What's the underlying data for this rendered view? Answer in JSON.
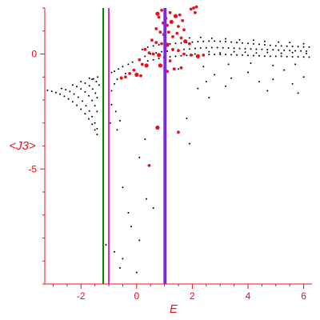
{
  "chart_data": {
    "type": "scatter",
    "title": "",
    "xlabel": "E",
    "ylabel": "<J3>",
    "xlim": [
      -3.3,
      6.3
    ],
    "ylim": [
      -10,
      2
    ],
    "xticks": [
      -2,
      0,
      2,
      4,
      6
    ],
    "yticks": [
      0,
      -5
    ],
    "grid": false,
    "colors": {
      "axis": "#e8111a",
      "black_points": "#000000",
      "red_points": "#e8111a",
      "line_green": "#008000",
      "line_magenta": "#cc33cc",
      "line_purple": "#7a2be2"
    },
    "vertical_lines": [
      {
        "x": -1.2,
        "color": "#008000"
      },
      {
        "x": -1.0,
        "color": "#cc33cc"
      },
      {
        "x": 1.02,
        "color": "#7a2be2"
      }
    ],
    "series": [
      {
        "color": "#000000",
        "points": [
          [
            -3.2,
            -1.58
          ],
          [
            -3.05,
            -1.62
          ],
          [
            -2.9,
            -1.68
          ],
          [
            -2.75,
            -1.75
          ],
          [
            -2.6,
            -1.84
          ],
          [
            -2.45,
            -1.95
          ],
          [
            -2.3,
            -2.08
          ],
          [
            -2.15,
            -2.23
          ],
          [
            -2.0,
            -2.4
          ],
          [
            -1.85,
            -2.6
          ],
          [
            -1.72,
            -2.82
          ],
          [
            -1.6,
            -3.05
          ],
          [
            -1.5,
            -3.3
          ],
          [
            -1.42,
            -3.5
          ],
          [
            -2.7,
            -1.5
          ],
          [
            -2.55,
            -1.55
          ],
          [
            -2.4,
            -1.63
          ],
          [
            -2.25,
            -1.74
          ],
          [
            -2.1,
            -1.88
          ],
          [
            -1.95,
            -2.05
          ],
          [
            -1.82,
            -2.25
          ],
          [
            -1.7,
            -2.48
          ],
          [
            -1.6,
            -2.72
          ],
          [
            -1.5,
            -3.0
          ],
          [
            -1.42,
            -3.25
          ],
          [
            -2.3,
            -1.35
          ],
          [
            -2.15,
            -1.42
          ],
          [
            -2.0,
            -1.52
          ],
          [
            -1.85,
            -1.65
          ],
          [
            -1.72,
            -1.82
          ],
          [
            -1.6,
            -2.02
          ],
          [
            -1.5,
            -2.25
          ],
          [
            -1.42,
            -2.5
          ],
          [
            -2.0,
            -1.2
          ],
          [
            -1.85,
            -1.27
          ],
          [
            -1.7,
            -1.38
          ],
          [
            -1.58,
            -1.52
          ],
          [
            -1.48,
            -1.7
          ],
          [
            -1.42,
            -1.9
          ],
          [
            -1.6,
            -1.1
          ],
          [
            -1.45,
            -1.2
          ],
          [
            -1.35,
            -1.35
          ],
          [
            -1.7,
            -1.05
          ],
          [
            -1.55,
            -1.08
          ],
          [
            -1.4,
            -1.0
          ],
          [
            -1.2,
            -0.95
          ],
          [
            -1.0,
            -0.9
          ],
          [
            -0.9,
            -0.8
          ],
          [
            -0.8,
            -0.75
          ],
          [
            -0.65,
            -0.65
          ],
          [
            -0.5,
            -0.55
          ],
          [
            -0.3,
            -0.45
          ],
          [
            -0.15,
            -0.35
          ],
          [
            -0.9,
            -1.6
          ],
          [
            -0.8,
            -1.3
          ],
          [
            -0.7,
            -1.1
          ],
          [
            -0.55,
            -1.0
          ],
          [
            -0.4,
            -0.85
          ],
          [
            -0.9,
            -2.2
          ],
          [
            -0.75,
            -2.5
          ],
          [
            -0.6,
            -2.9
          ],
          [
            -0.95,
            -3.0
          ],
          [
            -0.7,
            -3.3
          ],
          [
            -0.5,
            -5.8
          ],
          [
            -0.3,
            -6.9
          ],
          [
            -0.2,
            -7.5
          ],
          [
            0.1,
            -4.5
          ],
          [
            0.3,
            -3.7
          ],
          [
            0.35,
            -6.3
          ],
          [
            0.1,
            -8.1
          ],
          [
            0.6,
            -6.7
          ],
          [
            0.0,
            -9.5
          ],
          [
            -1.1,
            -8.3
          ],
          [
            -0.8,
            -8.6
          ],
          [
            -0.5,
            -8.9
          ],
          [
            -0.6,
            -9.3
          ],
          [
            1.8,
            -2.8
          ],
          [
            1.9,
            -3.9
          ],
          [
            2.2,
            -1.5
          ],
          [
            2.5,
            -1.2
          ],
          [
            2.6,
            -1.9
          ],
          [
            2.8,
            -0.9
          ],
          [
            3.2,
            -1.4
          ],
          [
            3.4,
            -1.05
          ],
          [
            4.0,
            -0.8
          ],
          [
            4.4,
            -1.2
          ],
          [
            4.7,
            -1.6
          ],
          [
            4.9,
            -1.1
          ],
          [
            5.3,
            -0.7
          ],
          [
            5.6,
            -1.3
          ],
          [
            5.8,
            -1.7
          ],
          [
            6.0,
            -1.0
          ],
          [
            0.2,
            0.2
          ],
          [
            0.4,
            0.3
          ],
          [
            0.6,
            0.35
          ],
          [
            0.8,
            0.4
          ],
          [
            1.0,
            0.42
          ],
          [
            1.2,
            0.44
          ],
          [
            1.4,
            0.46
          ],
          [
            1.6,
            0.48
          ],
          [
            1.8,
            0.5
          ],
          [
            2.0,
            0.52
          ],
          [
            2.2,
            0.54
          ],
          [
            2.4,
            0.55
          ],
          [
            2.6,
            0.56
          ],
          [
            2.8,
            0.56
          ],
          [
            3.0,
            0.55
          ],
          [
            3.2,
            0.54
          ],
          [
            3.4,
            0.52
          ],
          [
            3.6,
            0.5
          ],
          [
            3.8,
            0.48
          ],
          [
            4.0,
            0.46
          ],
          [
            4.2,
            0.44
          ],
          [
            4.4,
            0.42
          ],
          [
            4.6,
            0.4
          ],
          [
            4.8,
            0.38
          ],
          [
            5.0,
            0.36
          ],
          [
            5.2,
            0.35
          ],
          [
            5.4,
            0.34
          ],
          [
            5.6,
            0.33
          ],
          [
            5.8,
            0.32
          ],
          [
            6.0,
            0.31
          ],
          [
            6.2,
            0.3
          ],
          [
            0.3,
            -0.1
          ],
          [
            0.5,
            0.0
          ],
          [
            0.7,
            0.05
          ],
          [
            0.9,
            0.1
          ],
          [
            1.1,
            0.12
          ],
          [
            1.3,
            0.15
          ],
          [
            1.5,
            0.18
          ],
          [
            1.7,
            0.2
          ],
          [
            1.9,
            0.22
          ],
          [
            2.1,
            0.24
          ],
          [
            2.3,
            0.26
          ],
          [
            2.5,
            0.27
          ],
          [
            2.7,
            0.28
          ],
          [
            2.9,
            0.28
          ],
          [
            3.1,
            0.27
          ],
          [
            3.3,
            0.26
          ],
          [
            3.5,
            0.25
          ],
          [
            3.7,
            0.24
          ],
          [
            3.9,
            0.23
          ],
          [
            4.1,
            0.22
          ],
          [
            4.3,
            0.21
          ],
          [
            4.5,
            0.2
          ],
          [
            4.7,
            0.19
          ],
          [
            4.9,
            0.18
          ],
          [
            5.1,
            0.17
          ],
          [
            5.3,
            0.16
          ],
          [
            5.5,
            0.15
          ],
          [
            5.7,
            0.14
          ],
          [
            5.9,
            0.13
          ],
          [
            6.1,
            0.12
          ],
          [
            0.4,
            -0.3
          ],
          [
            0.6,
            -0.25
          ],
          [
            0.8,
            -0.2
          ],
          [
            1.0,
            -0.15
          ],
          [
            1.2,
            -0.12
          ],
          [
            1.4,
            -0.1
          ],
          [
            1.6,
            -0.08
          ],
          [
            1.8,
            -0.06
          ],
          [
            2.0,
            -0.05
          ],
          [
            2.2,
            -0.04
          ],
          [
            2.4,
            -0.03
          ],
          [
            2.6,
            -0.02
          ],
          [
            2.8,
            -0.02
          ],
          [
            3.0,
            -0.02
          ],
          [
            3.2,
            -0.02
          ],
          [
            3.4,
            -0.03
          ],
          [
            3.6,
            -0.04
          ],
          [
            3.8,
            -0.05
          ],
          [
            4.0,
            -0.06
          ],
          [
            4.2,
            -0.07
          ],
          [
            4.4,
            -0.08
          ],
          [
            4.6,
            -0.09
          ],
          [
            4.8,
            -0.1
          ],
          [
            5.0,
            -0.1
          ],
          [
            5.2,
            -0.1
          ],
          [
            5.4,
            -0.11
          ],
          [
            5.6,
            -0.12
          ],
          [
            5.8,
            -0.12
          ],
          [
            6.0,
            -0.13
          ],
          [
            6.2,
            -0.14
          ],
          [
            1.9,
            0.7
          ],
          [
            2.3,
            0.72
          ],
          [
            2.7,
            0.68
          ],
          [
            3.2,
            0.66
          ],
          [
            3.7,
            0.62
          ],
          [
            4.2,
            0.6
          ],
          [
            4.6,
            0.55
          ],
          [
            5.1,
            0.52
          ],
          [
            5.5,
            0.5
          ],
          [
            6.0,
            0.45
          ],
          [
            2.1,
            0.0
          ],
          [
            2.6,
            0.1
          ],
          [
            3.0,
            0.05
          ],
          [
            3.5,
            0.1
          ],
          [
            3.9,
            0.08
          ],
          [
            4.3,
            0.04
          ],
          [
            4.7,
            0.07
          ],
          [
            5.2,
            0.03
          ],
          [
            5.6,
            0.06
          ],
          [
            6.1,
            0.02
          ],
          [
            3.3,
            -0.45
          ],
          [
            4.1,
            -0.4
          ],
          [
            4.9,
            -0.5
          ],
          [
            5.7,
            -0.45
          ],
          [
            2.4,
            -0.55
          ],
          [
            1.5,
            -0.65
          ]
        ]
      },
      {
        "color": "#e8111a",
        "points": [
          [
            0.75,
            1.75
          ],
          [
            0.8,
            1.6
          ],
          [
            0.9,
            1.9
          ],
          [
            1.05,
            1.55
          ],
          [
            1.2,
            1.8
          ],
          [
            1.4,
            1.65
          ],
          [
            1.55,
            1.7
          ],
          [
            1.65,
            1.45
          ],
          [
            0.95,
            1.35
          ],
          [
            1.1,
            1.25
          ],
          [
            1.25,
            1.4
          ],
          [
            1.5,
            1.2
          ],
          [
            1.7,
            1.05
          ],
          [
            0.7,
            1.1
          ],
          [
            0.85,
            0.95
          ],
          [
            1.0,
            0.85
          ],
          [
            1.15,
            0.95
          ],
          [
            1.3,
            0.75
          ],
          [
            1.45,
            0.9
          ],
          [
            1.6,
            0.7
          ],
          [
            1.75,
            0.55
          ],
          [
            1.9,
            0.45
          ],
          [
            0.55,
            0.6
          ],
          [
            0.7,
            0.5
          ],
          [
            0.9,
            0.45
          ],
          [
            1.1,
            0.4
          ],
          [
            1.3,
            0.2
          ],
          [
            1.5,
            0.15
          ],
          [
            1.7,
            0.0
          ],
          [
            1.95,
            -0.05
          ],
          [
            2.2,
            -0.1
          ],
          [
            2.4,
            -0.05
          ],
          [
            0.3,
            0.2
          ],
          [
            0.45,
            0.05
          ],
          [
            0.6,
            0.0
          ],
          [
            0.8,
            -0.05
          ],
          [
            1.0,
            -0.15
          ],
          [
            1.2,
            -0.3
          ],
          [
            0.1,
            -0.25
          ],
          [
            0.2,
            -0.45
          ],
          [
            0.35,
            -0.5
          ],
          [
            -0.1,
            -0.7
          ],
          [
            -0.25,
            -0.85
          ],
          [
            -0.4,
            -1.0
          ],
          [
            -0.55,
            -1.05
          ],
          [
            0.0,
            -0.9
          ],
          [
            0.15,
            -0.95
          ],
          [
            1.1,
            -0.75
          ],
          [
            1.35,
            -0.65
          ],
          [
            1.6,
            -0.6
          ],
          [
            0.85,
            -0.5
          ],
          [
            2.05,
            2.0
          ],
          [
            2.1,
            1.8
          ],
          [
            1.95,
            1.95
          ],
          [
            2.15,
            2.05
          ],
          [
            0.75,
            -3.2
          ],
          [
            1.5,
            -3.4
          ],
          [
            0.45,
            -4.85
          ]
        ]
      }
    ]
  }
}
